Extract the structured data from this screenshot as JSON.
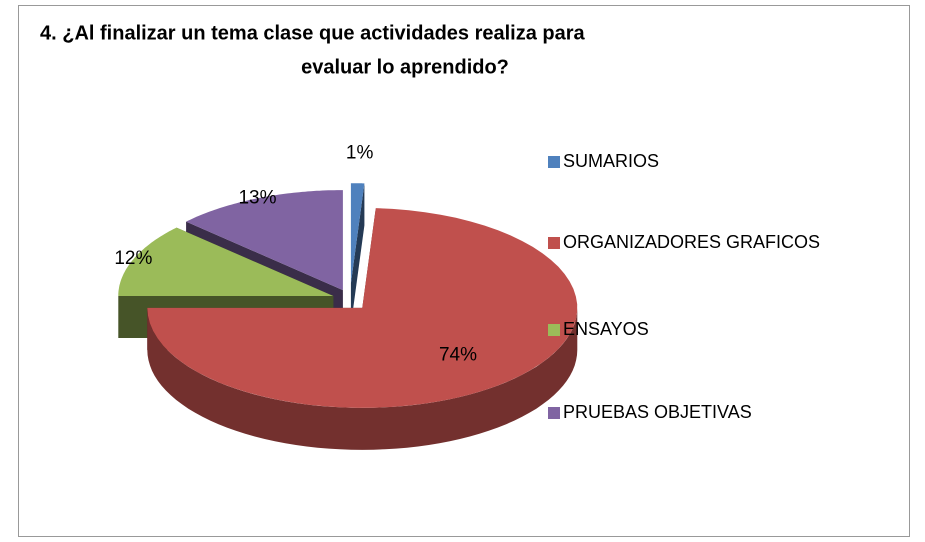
{
  "chart_data": {
    "type": "pie",
    "title": [
      "4.  ¿Al finalizar un tema    clase  que actividades  realiza para",
      "evaluar lo aprendido?"
    ],
    "categories": [
      "SUMARIOS",
      "ORGANIZADORES GRAFICOS",
      "ENSAYOS",
      "PRUEBAS OBJETIVAS"
    ],
    "values": [
      1,
      74,
      12,
      13
    ],
    "value_labels": [
      "1%",
      "74%",
      "12%",
      "13%"
    ],
    "colors": [
      "#4f81bd",
      "#c0504d",
      "#9bbb59",
      "#8064a2"
    ],
    "legend": "right"
  }
}
